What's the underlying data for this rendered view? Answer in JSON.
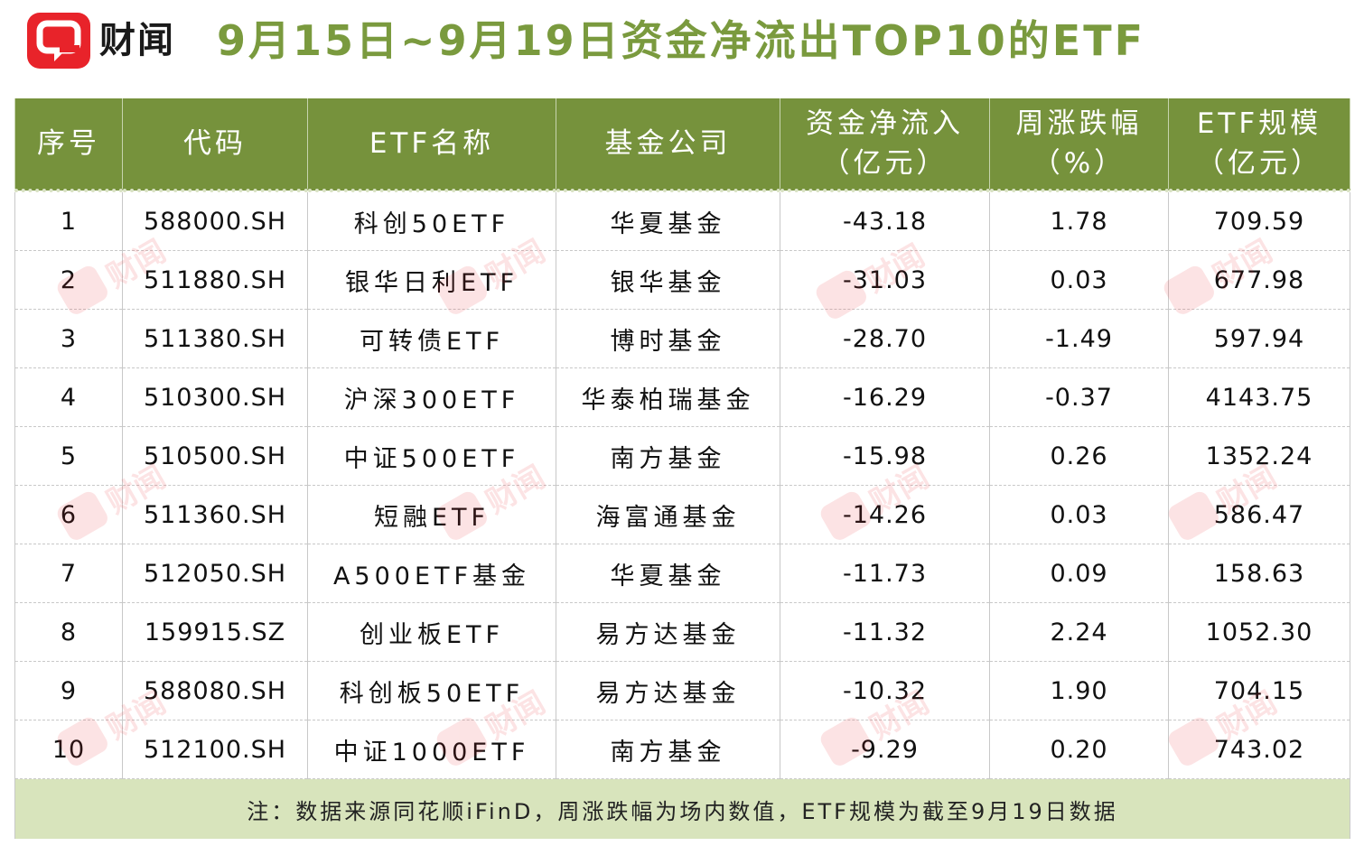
{
  "brand": {
    "name": "财闻",
    "logo_icon": "chat-bubble-logo-icon",
    "logo_color": "#e8232a"
  },
  "title": "9月15日~9月19日资金净流出TOP10的ETF",
  "colors": {
    "title": "#7a9a3e",
    "header_bg": "#76923c",
    "note_bg": "#d8e4bc"
  },
  "table": {
    "columns": {
      "index": "序号",
      "code": "代码",
      "name": "ETF名称",
      "company": "基金公司",
      "net_flow_1": "资金净流入",
      "net_flow_2": "（亿元）",
      "weekly_change_1": "周涨跌幅",
      "weekly_change_2": "（%）",
      "size_1": "ETF规模",
      "size_2": "（亿元）"
    },
    "rows": [
      {
        "index": "1",
        "code": "588000.SH",
        "name": "科创50ETF",
        "company": "华夏基金",
        "net_flow": "-43.18",
        "weekly_change": "1.78",
        "size": "709.59"
      },
      {
        "index": "2",
        "code": "511880.SH",
        "name": "银华日利ETF",
        "company": "银华基金",
        "net_flow": "-31.03",
        "weekly_change": "0.03",
        "size": "677.98"
      },
      {
        "index": "3",
        "code": "511380.SH",
        "name": "可转债ETF",
        "company": "博时基金",
        "net_flow": "-28.70",
        "weekly_change": "-1.49",
        "size": "597.94"
      },
      {
        "index": "4",
        "code": "510300.SH",
        "name": "沪深300ETF",
        "company": "华泰柏瑞基金",
        "net_flow": "-16.29",
        "weekly_change": "-0.37",
        "size": "4143.75"
      },
      {
        "index": "5",
        "code": "510500.SH",
        "name": "中证500ETF",
        "company": "南方基金",
        "net_flow": "-15.98",
        "weekly_change": "0.26",
        "size": "1352.24"
      },
      {
        "index": "6",
        "code": "511360.SH",
        "name": "短融ETF",
        "company": "海富通基金",
        "net_flow": "-14.26",
        "weekly_change": "0.03",
        "size": "586.47"
      },
      {
        "index": "7",
        "code": "512050.SH",
        "name": "A500ETF基金",
        "company": "华夏基金",
        "net_flow": "-11.73",
        "weekly_change": "0.09",
        "size": "158.63"
      },
      {
        "index": "8",
        "code": "159915.SZ",
        "name": "创业板ETF",
        "company": "易方达基金",
        "net_flow": "-11.32",
        "weekly_change": "2.24",
        "size": "1052.30"
      },
      {
        "index": "9",
        "code": "588080.SH",
        "name": "科创板50ETF",
        "company": "易方达基金",
        "net_flow": "-10.32",
        "weekly_change": "1.90",
        "size": "704.15"
      },
      {
        "index": "10",
        "code": "512100.SH",
        "name": "中证1000ETF",
        "company": "南方基金",
        "net_flow": "-9.29",
        "weekly_change": "0.20",
        "size": "743.02"
      }
    ],
    "note": "注：数据来源同花顺iFinD，周涨跌幅为场内数值，ETF规模为截至9月19日数据"
  },
  "watermark": {
    "text": "财闻",
    "icon": "chat-bubble-logo-icon"
  }
}
